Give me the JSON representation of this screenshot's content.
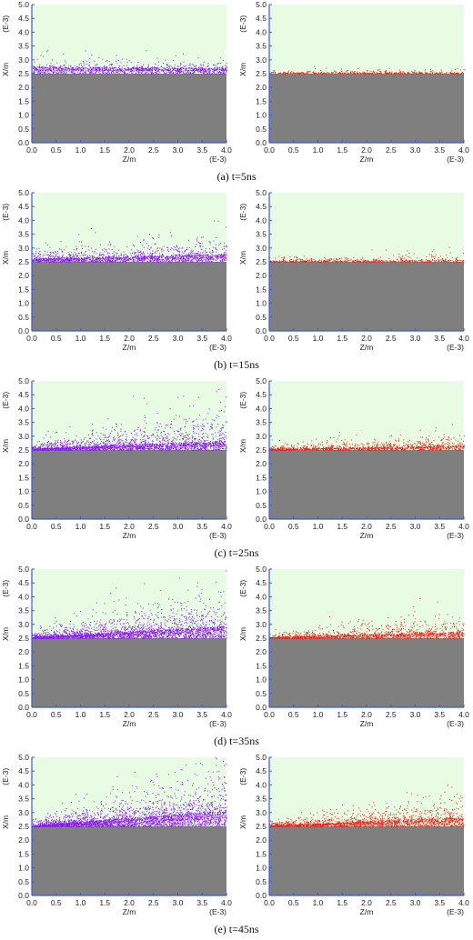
{
  "chart_data": [
    {
      "type": "scatter",
      "caption": "(a) t=5ns",
      "xlabel": "Z/m",
      "ylabel": "X/m",
      "x_exponent": "(E-3)",
      "y_exponent": "(E-3)",
      "xlim": [
        0.0,
        4.0
      ],
      "ylim": [
        0.0,
        5.0
      ],
      "x_ticks": [
        "0.0",
        "0.5",
        "1.0",
        "1.5",
        "2.0",
        "2.5",
        "3.0",
        "3.5",
        "4.0"
      ],
      "y_ticks": [
        "0.0",
        "0.5",
        "1.0",
        "1.5",
        "2.0",
        "2.5",
        "3.0",
        "3.5",
        "4.0",
        "4.5",
        "5.0"
      ],
      "substrate_height": 2.5,
      "series": [
        {
          "color": "#8c1cf2",
          "surface_start": 0.25,
          "surface_end": 0.22,
          "spread_start": 0.35,
          "spread_end": 0.3,
          "density": 1300
        },
        {
          "color": "#e8231c",
          "surface_start": 0.05,
          "surface_end": 0.04,
          "spread_start": 0.15,
          "spread_end": 0.12,
          "density": 420
        }
      ]
    },
    {
      "type": "scatter",
      "caption": "(b) t=15ns",
      "xlabel": "Z/m",
      "ylabel": "X/m",
      "x_exponent": "(E-3)",
      "y_exponent": "(E-3)",
      "xlim": [
        0.0,
        4.0
      ],
      "ylim": [
        0.0,
        5.0
      ],
      "x_ticks": [
        "0.0",
        "0.5",
        "1.0",
        "1.5",
        "2.0",
        "2.5",
        "3.0",
        "3.5",
        "4.0"
      ],
      "y_ticks": [
        "0.0",
        "0.5",
        "1.0",
        "1.5",
        "2.0",
        "2.5",
        "3.0",
        "3.5",
        "4.0",
        "4.5",
        "5.0"
      ],
      "substrate_height": 2.5,
      "series": [
        {
          "color": "#8c1cf2",
          "surface_start": 0.12,
          "surface_end": 0.3,
          "spread_start": 0.35,
          "spread_end": 0.75,
          "density": 1700
        },
        {
          "color": "#e8231c",
          "surface_start": 0.04,
          "surface_end": 0.08,
          "spread_start": 0.15,
          "spread_end": 0.3,
          "density": 520
        }
      ]
    },
    {
      "type": "scatter",
      "caption": "(c) t=25ns",
      "xlabel": "Z/m",
      "ylabel": "X/m",
      "x_exponent": "(E-3)",
      "y_exponent": "(E-3)",
      "xlim": [
        0.0,
        4.0
      ],
      "ylim": [
        0.0,
        5.0
      ],
      "x_ticks": [
        "0.0",
        "0.5",
        "1.0",
        "1.5",
        "2.0",
        "2.5",
        "3.0",
        "3.5",
        "4.0"
      ],
      "y_ticks": [
        "0.0",
        "0.5",
        "1.0",
        "1.5",
        "2.0",
        "2.5",
        "3.0",
        "3.5",
        "4.0",
        "4.5",
        "5.0"
      ],
      "substrate_height": 2.5,
      "series": [
        {
          "color": "#8c1cf2",
          "surface_start": 0.05,
          "surface_end": 0.35,
          "spread_start": 0.25,
          "spread_end": 1.3,
          "density": 2300
        },
        {
          "color": "#e8231c",
          "surface_start": 0.04,
          "surface_end": 0.18,
          "spread_start": 0.15,
          "spread_end": 0.6,
          "density": 1200
        }
      ]
    },
    {
      "type": "scatter",
      "caption": "(d) t=35ns",
      "xlabel": "Z/m",
      "ylabel": "X/m",
      "x_exponent": "(E-3)",
      "y_exponent": "(E-3)",
      "xlim": [
        0.0,
        4.0
      ],
      "ylim": [
        0.0,
        5.0
      ],
      "x_ticks": [
        "0.0",
        "0.5",
        "1.0",
        "1.5",
        "2.0",
        "2.5",
        "3.0",
        "3.5",
        "4.0"
      ],
      "y_ticks": [
        "0.0",
        "0.5",
        "1.0",
        "1.5",
        "2.0",
        "2.5",
        "3.0",
        "3.5",
        "4.0",
        "4.5",
        "5.0"
      ],
      "substrate_height": 2.5,
      "series": [
        {
          "color": "#8c1cf2",
          "surface_start": 0.04,
          "surface_end": 0.45,
          "spread_start": 0.2,
          "spread_end": 1.5,
          "density": 2600
        },
        {
          "color": "#e8231c",
          "surface_start": 0.04,
          "surface_end": 0.25,
          "spread_start": 0.15,
          "spread_end": 0.8,
          "density": 1400
        }
      ]
    },
    {
      "type": "scatter",
      "caption": "(e) t=45ns",
      "xlabel": "Z/m",
      "ylabel": "X/m",
      "x_exponent": "(E-3)",
      "y_exponent": "(E-3)",
      "xlim": [
        0.0,
        4.0
      ],
      "ylim": [
        0.0,
        5.0
      ],
      "x_ticks": [
        "0.0",
        "0.5",
        "1.0",
        "1.5",
        "2.0",
        "2.5",
        "3.0",
        "3.5",
        "4.0"
      ],
      "y_ticks": [
        "0.0",
        "0.5",
        "1.0",
        "1.5",
        "2.0",
        "2.5",
        "3.0",
        "3.5",
        "4.0",
        "4.5",
        "5.0"
      ],
      "substrate_height": 2.5,
      "series": [
        {
          "color": "#8c1cf2",
          "surface_start": 0.03,
          "surface_end": 0.6,
          "spread_start": 0.15,
          "spread_end": 1.9,
          "density": 3000
        },
        {
          "color": "#e8231c",
          "surface_start": 0.03,
          "surface_end": 0.35,
          "spread_start": 0.15,
          "spread_end": 1.0,
          "density": 1800
        }
      ]
    }
  ],
  "colors": {
    "plot_background": "#e8fbe3",
    "substrate": "#7f7f7f",
    "axis": "#3b5bd6",
    "tick_text": "#222222"
  }
}
